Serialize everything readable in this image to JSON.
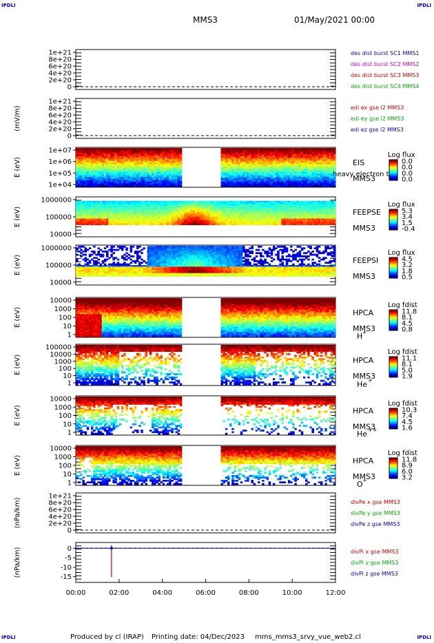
{
  "corner_labels": [
    "IPDLI",
    "IPDLI",
    "IPDLI",
    "IPDLI"
  ],
  "header": {
    "spacecraft": "MMS3",
    "datetime": "01/May/2021 00:00"
  },
  "footer": {
    "produced_by": "Produced by cl (IRAP)",
    "printing_date": "Printing date: 04/Dec/2023",
    "script": "mms_mms3_srvy_vue_web2.cl"
  },
  "chart_data": {
    "type": "heatmap",
    "x_ticks": [
      "00:00",
      "02:00",
      "04:00",
      "06:00",
      "08:00",
      "10:00",
      "12:00"
    ],
    "x_range_hours": [
      0,
      12
    ],
    "data_gap_hours": [
      4.85,
      6.7
    ],
    "panels": [
      {
        "kind": "line",
        "ylabel": "",
        "yticks": [
          "1e+21",
          "8e+20",
          "6e+20",
          "4e+20",
          "2e+20",
          "0"
        ],
        "legend": [
          {
            "text": "des dist burst SC1 MMS1",
            "color": "#0000cc"
          },
          {
            "text": "des dist burst SC2 MMS2",
            "color": "#cc00cc"
          },
          {
            "text": "des dist burst SC3 MMS3",
            "color": "#cc0000"
          },
          {
            "text": "des dist burst SC4 MMS4",
            "color": "#00aa00"
          }
        ]
      },
      {
        "kind": "line",
        "ylabel": "(mV/m)",
        "yticks": [
          "1e+21",
          "8e+20",
          "6e+20",
          "4e+20",
          "2e+20",
          "0"
        ],
        "legend": [
          {
            "text": "edi ex gse l2 MMS3",
            "color": "#cc0000"
          },
          {
            "text": "edi ey gse l2 MMS3",
            "color": "#00aa00"
          },
          {
            "text": "edi ez gse l2 MMS3",
            "color": "#0000cc"
          }
        ]
      },
      {
        "kind": "spec",
        "ylabel": "E (eV)",
        "yticks": [
          "1e+07",
          "1e+06",
          "1e+05",
          "1e+04"
        ],
        "instrument": "EIS",
        "spacecraft": "MMS3",
        "overlay": "heavy electron tof",
        "cbar_title": "Log flux",
        "cbar_ticks": [
          "0.0",
          "0.0",
          "0.0",
          "0.0"
        ]
      },
      {
        "kind": "spec",
        "ylabel": "E (eV)",
        "yticks": [
          "1000000",
          "100000",
          "10000"
        ],
        "instrument": "FEEPSE",
        "spacecraft": "MMS3",
        "cbar_title": "Log flux",
        "cbar_ticks": [
          "5.3",
          "3.4",
          "1.5",
          "-0.4"
        ]
      },
      {
        "kind": "spec",
        "ylabel": "E (eV)",
        "yticks": [
          "1000000",
          "100000",
          "10000"
        ],
        "instrument": "FEEPSI",
        "spacecraft": "MMS3",
        "cbar_title": "Log flux",
        "cbar_ticks": [
          "4.5",
          "3.2",
          "1.8",
          "0.5"
        ]
      },
      {
        "kind": "spec",
        "ylabel": "E (eV)",
        "yticks": [
          "10000",
          "1000",
          "100",
          "10",
          "1"
        ],
        "instrument": "HPCA",
        "spacecraft": "MMS3",
        "species": "H",
        "charge": "+",
        "cbar_title": "Log fdist",
        "cbar_ticks": [
          "11.8",
          "8.1",
          "4.5",
          "0.8"
        ]
      },
      {
        "kind": "spec",
        "ylabel": "E (eV)",
        "yticks": [
          "100000",
          "10000",
          "1000",
          "100",
          "10",
          "1"
        ],
        "instrument": "HPCA",
        "spacecraft": "MMS3",
        "species": "He",
        "charge": "+",
        "cbar_title": "Log fdist",
        "cbar_ticks": [
          "11.1",
          "8.1",
          "5.0",
          "1.9"
        ]
      },
      {
        "kind": "spec",
        "ylabel": "E (eV)",
        "yticks": [
          "10000",
          "1000",
          "100",
          "10",
          "1"
        ],
        "instrument": "HPCA",
        "spacecraft": "MMS3",
        "species": "He",
        "charge": "++",
        "cbar_title": "Log fdist",
        "cbar_ticks": [
          "10.3",
          "7.4",
          "4.5",
          "1.6"
        ]
      },
      {
        "kind": "spec",
        "ylabel": "E (eV)",
        "yticks": [
          "10000",
          "1000",
          "100",
          "10",
          "1"
        ],
        "instrument": "HPCA",
        "spacecraft": "MMS3",
        "species": "O",
        "charge": "+",
        "cbar_title": "Log fdist",
        "cbar_ticks": [
          "11.8",
          "8.9",
          "6.0",
          "3.2"
        ]
      },
      {
        "kind": "line",
        "ylabel": "(nPa/km)",
        "yticks": [
          "1e+21",
          "8e+20",
          "6e+20",
          "4e+20",
          "2e+20",
          "0"
        ],
        "legend": [
          {
            "text": "divPe x gse MMS3",
            "color": "#cc0000"
          },
          {
            "text": "divPe y gse MMS3",
            "color": "#00aa00"
          },
          {
            "text": "divPe z gse MMS3",
            "color": "#0000cc"
          }
        ]
      },
      {
        "kind": "line",
        "ylabel": "(nPa/km)",
        "yticks": [
          "0",
          "-5",
          "-10",
          "-15"
        ],
        "ylim": [
          -18,
          3
        ],
        "spike": {
          "time_hours": 1.65,
          "min": -15.2,
          "max": 1.5
        },
        "legend": [
          {
            "text": "divPi x gse MMS3",
            "color": "#cc0000"
          },
          {
            "text": "divPi y gse MMS3",
            "color": "#00aa00"
          },
          {
            "text": "divPi z gse MMS3",
            "color": "#0000cc"
          }
        ]
      }
    ]
  }
}
